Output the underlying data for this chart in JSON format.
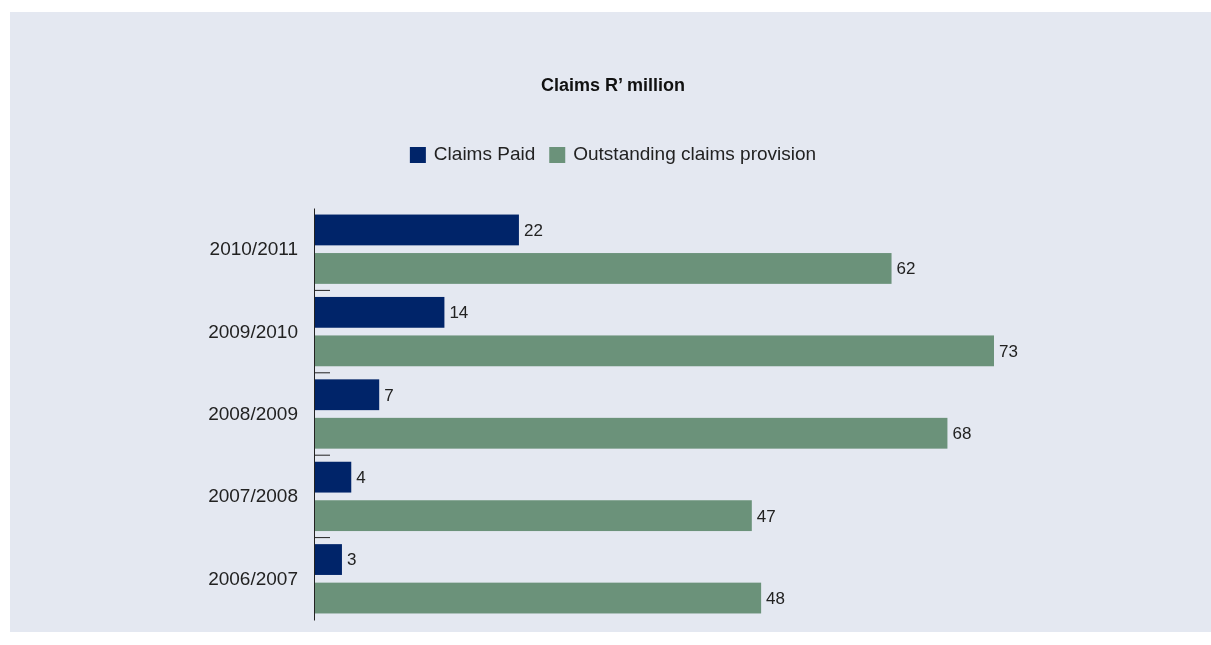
{
  "chart_data": {
    "type": "bar",
    "orientation": "horizontal",
    "title": "Claims R’ million",
    "categories": [
      "2010/2011",
      "2009/2010",
      "2008/2009",
      "2007/2008",
      "2006/2007"
    ],
    "series": [
      {
        "name": "Claims Paid",
        "color": "#002469",
        "values": [
          22,
          14,
          7,
          4,
          3
        ]
      },
      {
        "name": "Outstanding claims provision",
        "color": "#6b927a",
        "values": [
          62,
          73,
          68,
          47,
          48
        ]
      }
    ],
    "data_labels": true,
    "legend": "top",
    "grid": false
  }
}
